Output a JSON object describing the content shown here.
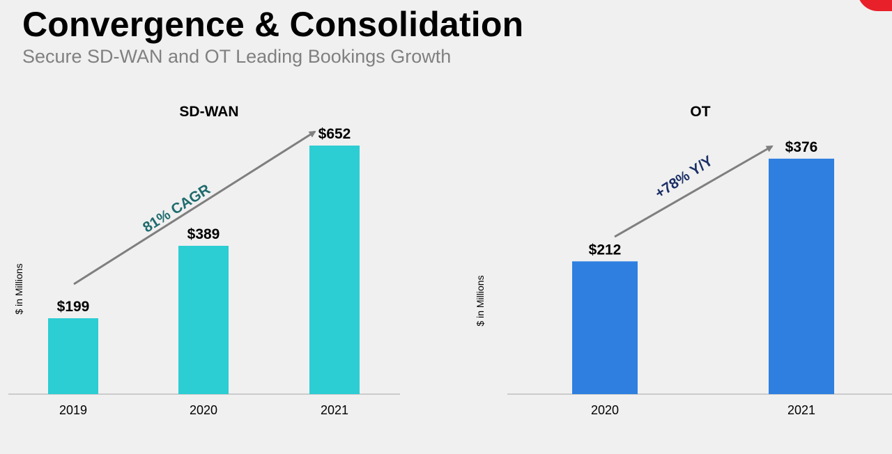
{
  "slide": {
    "title": "Convergence & Consolidation",
    "subtitle": "Secure SD-WAN and OT Leading Bookings Growth",
    "accent_color": "#e8202a"
  },
  "chart_data": [
    {
      "type": "bar",
      "title": "SD-WAN",
      "ylabel": "$ in Millions",
      "xlabel": "",
      "categories": [
        "2019",
        "2020",
        "2021"
      ],
      "values": [
        199,
        389,
        652
      ],
      "value_labels": [
        "$199",
        "$389",
        "$652"
      ],
      "ylim": [
        0,
        700
      ],
      "bar_color": "#2ccdd3",
      "annotation": {
        "text": "81% CAGR",
        "color": "#1f6b6d"
      },
      "grid": false,
      "legend": "none"
    },
    {
      "type": "bar",
      "title": "OT",
      "ylabel": "$ in Millions",
      "xlabel": "",
      "categories": [
        "2020",
        "2021"
      ],
      "values": [
        212,
        376
      ],
      "value_labels": [
        "$212",
        "$376"
      ],
      "ylim": [
        0,
        700
      ],
      "bar_color": "#2e7fe0",
      "annotation": {
        "text": "+78% Y/Y",
        "color": "#1b2f66"
      },
      "grid": false,
      "legend": "none"
    }
  ]
}
